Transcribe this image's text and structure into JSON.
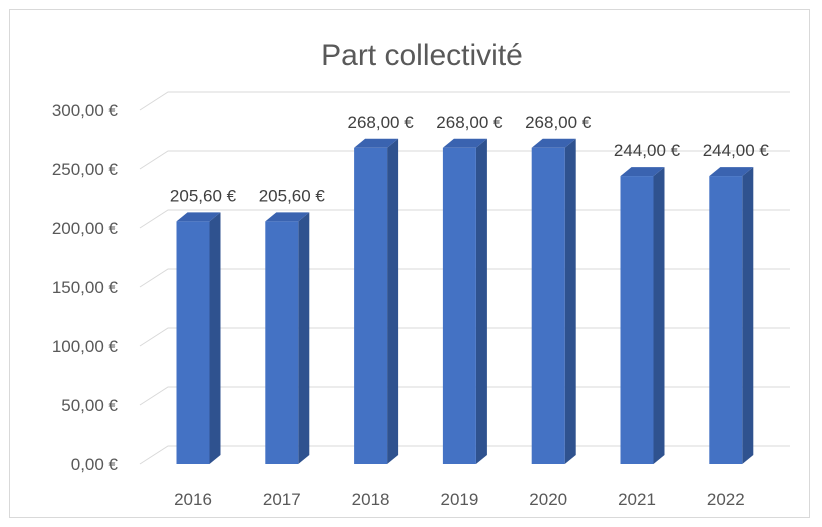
{
  "chart_data": {
    "type": "bar",
    "title": "Part collectivité",
    "categories": [
      "2016",
      "2017",
      "2018",
      "2019",
      "2020",
      "2021",
      "2022"
    ],
    "values": [
      205.6,
      205.6,
      268.0,
      268.0,
      268.0,
      244.0,
      244.0
    ],
    "data_labels": [
      "205,60 €",
      "205,60 €",
      "268,00 €",
      "268,00 €",
      "268,00 €",
      "244,00 €",
      "244,00 €"
    ],
    "y_ticks": [
      "0,00 €",
      "50,00 €",
      "100,00 €",
      "150,00 €",
      "200,00 €",
      "250,00 €",
      "300,00 €"
    ],
    "ylim": [
      0,
      300
    ],
    "xlabel": "",
    "ylabel": "",
    "grid": true,
    "legend": "none",
    "style": "3d-column",
    "colors": {
      "bar_front": "#4472c4",
      "bar_side": "#2f528f",
      "bar_top": "#3a63b0",
      "grid": "#d9d9d9",
      "text": "#595959"
    }
  }
}
